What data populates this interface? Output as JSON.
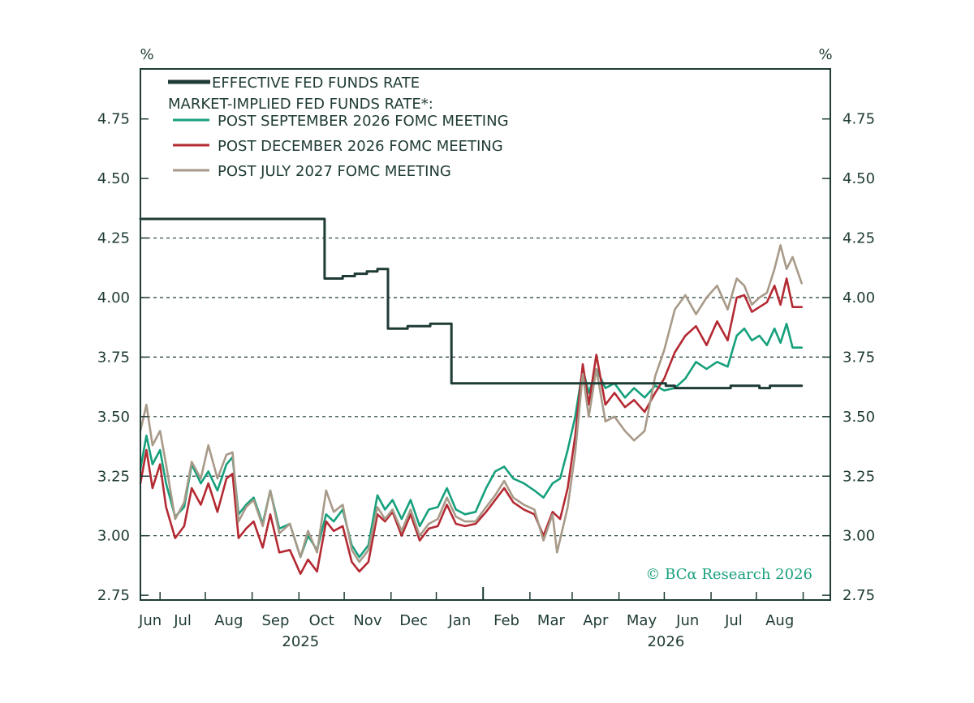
{
  "colors": {
    "frame": "#1f3b35",
    "grid": "#1f3b35",
    "effective": "#1f3b35",
    "sep2026": "#17a07c",
    "dec2026": "#b42a33",
    "jul2027": "#a89a89",
    "credit": "#17a07c"
  },
  "credit": "© BCα Research 2026",
  "chart_data": {
    "type": "line",
    "title": "",
    "xlabel": "",
    "ylabel": "%",
    "ylabel_right": "%",
    "ylim": [
      2.73,
      4.96
    ],
    "yticks": [
      2.75,
      3.0,
      3.25,
      3.5,
      3.75,
      4.0,
      4.25,
      4.5,
      4.75
    ],
    "ytick_labels": [
      "2.75",
      "3.00",
      "3.25",
      "3.50",
      "3.75",
      "4.00",
      "4.25",
      "4.50",
      "4.75"
    ],
    "dashed_gridlines": [
      3.0,
      3.25,
      3.5,
      3.75,
      4.0,
      4.25
    ],
    "xlim": [
      "2025-05-19",
      "2026-08-19"
    ],
    "month_ticks": [
      "2025-06-01",
      "2025-07-01",
      "2025-08-01",
      "2025-09-01",
      "2025-10-01",
      "2025-11-01",
      "2025-12-01",
      "2026-01-01",
      "2026-02-01",
      "2026-03-01",
      "2026-04-01",
      "2026-05-01",
      "2026-06-01",
      "2026-07-01",
      "2026-08-01"
    ],
    "month_labels": [
      "Jun",
      "Jul",
      "Aug",
      "Sep",
      "Oct",
      "Nov",
      "Dec",
      "Jan",
      "Feb",
      "Mar",
      "Apr",
      "May",
      "Jun",
      "Jul",
      "Aug"
    ],
    "year_labels": [
      {
        "date": "2025-09-01",
        "label": "2025"
      },
      {
        "date": "2026-05-01",
        "label": "2026"
      }
    ],
    "legend_header": "MARKET-IMPLIED FED FUNDS RATE*:",
    "legend_position": "top-left",
    "series": [
      {
        "name": "EFFECTIVE FED FUNDS RATE",
        "key": "effective",
        "step": true,
        "points": [
          [
            "2025-05-19",
            4.33
          ],
          [
            "2025-09-18",
            4.08
          ],
          [
            "2025-09-30",
            4.09
          ],
          [
            "2025-10-08",
            4.1
          ],
          [
            "2025-10-16",
            4.11
          ],
          [
            "2025-10-23",
            4.12
          ],
          [
            "2025-10-30",
            3.87
          ],
          [
            "2025-11-06",
            3.87
          ],
          [
            "2025-11-12",
            3.88
          ],
          [
            "2025-11-20",
            3.88
          ],
          [
            "2025-11-27",
            3.89
          ],
          [
            "2025-12-11",
            3.64
          ],
          [
            "2026-04-20",
            3.64
          ],
          [
            "2026-05-02",
            3.63
          ],
          [
            "2026-05-08",
            3.62
          ],
          [
            "2026-06-14",
            3.63
          ],
          [
            "2026-07-03",
            3.62
          ],
          [
            "2026-07-10",
            3.63
          ],
          [
            "2026-07-31",
            3.63
          ]
        ]
      },
      {
        "name": "POST SEPTEMBER 2026 FOMC MEETING",
        "key": "sep2026",
        "points": [
          [
            "2025-05-19",
            3.28
          ],
          [
            "2025-05-23",
            3.42
          ],
          [
            "2025-05-27",
            3.3
          ],
          [
            "2025-06-01",
            3.36
          ],
          [
            "2025-06-05",
            3.22
          ],
          [
            "2025-06-11",
            3.08
          ],
          [
            "2025-06-17",
            3.12
          ],
          [
            "2025-06-22",
            3.3
          ],
          [
            "2025-06-28",
            3.22
          ],
          [
            "2025-07-03",
            3.27
          ],
          [
            "2025-07-09",
            3.19
          ],
          [
            "2025-07-15",
            3.3
          ],
          [
            "2025-07-19",
            3.33
          ],
          [
            "2025-07-23",
            3.09
          ],
          [
            "2025-07-28",
            3.13
          ],
          [
            "2025-08-02",
            3.16
          ],
          [
            "2025-08-08",
            3.05
          ],
          [
            "2025-08-13",
            3.19
          ],
          [
            "2025-08-19",
            3.03
          ],
          [
            "2025-08-26",
            3.05
          ],
          [
            "2025-09-02",
            2.91
          ],
          [
            "2025-09-07",
            3.0
          ],
          [
            "2025-09-13",
            2.94
          ],
          [
            "2025-09-19",
            3.09
          ],
          [
            "2025-09-24",
            3.06
          ],
          [
            "2025-09-30",
            3.11
          ],
          [
            "2025-10-06",
            2.96
          ],
          [
            "2025-10-11",
            2.91
          ],
          [
            "2025-10-17",
            2.96
          ],
          [
            "2025-10-23",
            3.17
          ],
          [
            "2025-10-28",
            3.11
          ],
          [
            "2025-11-02",
            3.15
          ],
          [
            "2025-11-08",
            3.07
          ],
          [
            "2025-11-14",
            3.15
          ],
          [
            "2025-11-20",
            3.04
          ],
          [
            "2025-11-26",
            3.11
          ],
          [
            "2025-12-02",
            3.12
          ],
          [
            "2025-12-08",
            3.2
          ],
          [
            "2025-12-14",
            3.11
          ],
          [
            "2025-12-20",
            3.09
          ],
          [
            "2025-12-27",
            3.1
          ],
          [
            "2026-01-03",
            3.2
          ],
          [
            "2026-01-09",
            3.27
          ],
          [
            "2026-01-15",
            3.29
          ],
          [
            "2026-01-21",
            3.24
          ],
          [
            "2026-01-28",
            3.22
          ],
          [
            "2026-02-04",
            3.19
          ],
          [
            "2026-02-10",
            3.16
          ],
          [
            "2026-02-16",
            3.22
          ],
          [
            "2026-02-21",
            3.24
          ],
          [
            "2026-02-26",
            3.36
          ],
          [
            "2026-03-03",
            3.5
          ],
          [
            "2026-03-08",
            3.7
          ],
          [
            "2026-03-12",
            3.6
          ],
          [
            "2026-03-17",
            3.7
          ],
          [
            "2026-03-23",
            3.62
          ],
          [
            "2026-03-29",
            3.64
          ],
          [
            "2026-04-05",
            3.58
          ],
          [
            "2026-04-11",
            3.62
          ],
          [
            "2026-04-18",
            3.58
          ],
          [
            "2026-04-25",
            3.63
          ],
          [
            "2026-05-01",
            3.61
          ],
          [
            "2026-05-08",
            3.62
          ],
          [
            "2026-05-15",
            3.66
          ],
          [
            "2026-05-22",
            3.73
          ],
          [
            "2026-05-29",
            3.7
          ],
          [
            "2026-06-05",
            3.73
          ],
          [
            "2026-06-12",
            3.71
          ],
          [
            "2026-06-18",
            3.84
          ],
          [
            "2026-06-23",
            3.87
          ],
          [
            "2026-06-28",
            3.82
          ],
          [
            "2026-07-03",
            3.84
          ],
          [
            "2026-07-08",
            3.8
          ],
          [
            "2026-07-13",
            3.87
          ],
          [
            "2026-07-17",
            3.81
          ],
          [
            "2026-07-21",
            3.89
          ],
          [
            "2026-07-25",
            3.79
          ],
          [
            "2026-07-31",
            3.79
          ]
        ]
      },
      {
        "name": "POST DECEMBER 2026 FOMC MEETING",
        "key": "dec2026",
        "points": [
          [
            "2025-05-19",
            3.22
          ],
          [
            "2025-05-23",
            3.36
          ],
          [
            "2025-05-27",
            3.2
          ],
          [
            "2025-06-01",
            3.3
          ],
          [
            "2025-06-05",
            3.12
          ],
          [
            "2025-06-11",
            2.99
          ],
          [
            "2025-06-17",
            3.04
          ],
          [
            "2025-06-22",
            3.2
          ],
          [
            "2025-06-28",
            3.13
          ],
          [
            "2025-07-03",
            3.22
          ],
          [
            "2025-07-09",
            3.1
          ],
          [
            "2025-07-15",
            3.24
          ],
          [
            "2025-07-19",
            3.26
          ],
          [
            "2025-07-23",
            2.99
          ],
          [
            "2025-07-28",
            3.03
          ],
          [
            "2025-08-02",
            3.06
          ],
          [
            "2025-08-08",
            2.95
          ],
          [
            "2025-08-13",
            3.09
          ],
          [
            "2025-08-19",
            2.93
          ],
          [
            "2025-08-26",
            2.94
          ],
          [
            "2025-09-02",
            2.84
          ],
          [
            "2025-09-07",
            2.9
          ],
          [
            "2025-09-13",
            2.85
          ],
          [
            "2025-09-19",
            3.06
          ],
          [
            "2025-09-24",
            3.02
          ],
          [
            "2025-09-30",
            3.04
          ],
          [
            "2025-10-06",
            2.89
          ],
          [
            "2025-10-11",
            2.85
          ],
          [
            "2025-10-17",
            2.89
          ],
          [
            "2025-10-23",
            3.09
          ],
          [
            "2025-10-28",
            3.06
          ],
          [
            "2025-11-02",
            3.1
          ],
          [
            "2025-11-08",
            3.0
          ],
          [
            "2025-11-14",
            3.09
          ],
          [
            "2025-11-20",
            2.98
          ],
          [
            "2025-11-26",
            3.03
          ],
          [
            "2025-12-02",
            3.04
          ],
          [
            "2025-12-08",
            3.13
          ],
          [
            "2025-12-14",
            3.05
          ],
          [
            "2025-12-20",
            3.04
          ],
          [
            "2025-12-27",
            3.05
          ],
          [
            "2026-01-03",
            3.1
          ],
          [
            "2026-01-09",
            3.15
          ],
          [
            "2026-01-15",
            3.2
          ],
          [
            "2026-01-21",
            3.14
          ],
          [
            "2026-01-28",
            3.11
          ],
          [
            "2026-02-04",
            3.09
          ],
          [
            "2026-02-10",
            3.0
          ],
          [
            "2026-02-16",
            3.1
          ],
          [
            "2026-02-21",
            3.07
          ],
          [
            "2026-02-26",
            3.2
          ],
          [
            "2026-03-03",
            3.42
          ],
          [
            "2026-03-08",
            3.72
          ],
          [
            "2026-03-12",
            3.55
          ],
          [
            "2026-03-17",
            3.76
          ],
          [
            "2026-03-23",
            3.55
          ],
          [
            "2026-03-29",
            3.6
          ],
          [
            "2026-04-05",
            3.54
          ],
          [
            "2026-04-11",
            3.57
          ],
          [
            "2026-04-18",
            3.52
          ],
          [
            "2026-04-25",
            3.6
          ],
          [
            "2026-05-01",
            3.66
          ],
          [
            "2026-05-08",
            3.77
          ],
          [
            "2026-05-15",
            3.84
          ],
          [
            "2026-05-22",
            3.88
          ],
          [
            "2026-05-29",
            3.8
          ],
          [
            "2026-06-05",
            3.9
          ],
          [
            "2026-06-12",
            3.82
          ],
          [
            "2026-06-18",
            4.0
          ],
          [
            "2026-06-23",
            4.01
          ],
          [
            "2026-06-28",
            3.94
          ],
          [
            "2026-07-03",
            3.96
          ],
          [
            "2026-07-08",
            3.98
          ],
          [
            "2026-07-13",
            4.05
          ],
          [
            "2026-07-17",
            3.97
          ],
          [
            "2026-07-21",
            4.08
          ],
          [
            "2026-07-25",
            3.96
          ],
          [
            "2026-07-31",
            3.96
          ]
        ]
      },
      {
        "name": "POST JULY 2027 FOMC MEETING",
        "key": "jul2027",
        "points": [
          [
            "2025-05-19",
            3.44
          ],
          [
            "2025-05-23",
            3.55
          ],
          [
            "2025-05-27",
            3.38
          ],
          [
            "2025-06-01",
            3.44
          ],
          [
            "2025-06-05",
            3.3
          ],
          [
            "2025-06-11",
            3.07
          ],
          [
            "2025-06-17",
            3.14
          ],
          [
            "2025-06-22",
            3.31
          ],
          [
            "2025-06-28",
            3.24
          ],
          [
            "2025-07-03",
            3.38
          ],
          [
            "2025-07-09",
            3.24
          ],
          [
            "2025-07-15",
            3.34
          ],
          [
            "2025-07-19",
            3.35
          ],
          [
            "2025-07-23",
            3.06
          ],
          [
            "2025-07-28",
            3.12
          ],
          [
            "2025-08-02",
            3.15
          ],
          [
            "2025-08-08",
            3.04
          ],
          [
            "2025-08-13",
            3.19
          ],
          [
            "2025-08-19",
            3.01
          ],
          [
            "2025-08-26",
            3.05
          ],
          [
            "2025-09-02",
            2.91
          ],
          [
            "2025-09-07",
            3.02
          ],
          [
            "2025-09-13",
            2.93
          ],
          [
            "2025-09-19",
            3.19
          ],
          [
            "2025-09-24",
            3.1
          ],
          [
            "2025-09-30",
            3.13
          ],
          [
            "2025-10-06",
            2.94
          ],
          [
            "2025-10-11",
            2.89
          ],
          [
            "2025-10-17",
            2.94
          ],
          [
            "2025-10-23",
            3.12
          ],
          [
            "2025-10-28",
            3.07
          ],
          [
            "2025-11-02",
            3.11
          ],
          [
            "2025-11-08",
            3.02
          ],
          [
            "2025-11-14",
            3.11
          ],
          [
            "2025-11-20",
            3.0
          ],
          [
            "2025-11-26",
            3.05
          ],
          [
            "2025-12-02",
            3.07
          ],
          [
            "2025-12-08",
            3.16
          ],
          [
            "2025-12-14",
            3.08
          ],
          [
            "2025-12-20",
            3.06
          ],
          [
            "2025-12-27",
            3.06
          ],
          [
            "2026-01-03",
            3.12
          ],
          [
            "2026-01-09",
            3.17
          ],
          [
            "2026-01-15",
            3.23
          ],
          [
            "2026-01-21",
            3.16
          ],
          [
            "2026-01-28",
            3.13
          ],
          [
            "2026-02-04",
            3.11
          ],
          [
            "2026-02-10",
            2.98
          ],
          [
            "2026-02-16",
            3.09
          ],
          [
            "2026-02-19",
            2.93
          ],
          [
            "2026-02-26",
            3.12
          ],
          [
            "2026-03-03",
            3.35
          ],
          [
            "2026-03-08",
            3.68
          ],
          [
            "2026-03-12",
            3.5
          ],
          [
            "2026-03-17",
            3.7
          ],
          [
            "2026-03-23",
            3.48
          ],
          [
            "2026-03-29",
            3.5
          ],
          [
            "2026-04-05",
            3.44
          ],
          [
            "2026-04-11",
            3.4
          ],
          [
            "2026-04-18",
            3.44
          ],
          [
            "2026-04-25",
            3.67
          ],
          [
            "2026-05-01",
            3.78
          ],
          [
            "2026-05-08",
            3.95
          ],
          [
            "2026-05-15",
            4.01
          ],
          [
            "2026-05-22",
            3.93
          ],
          [
            "2026-05-29",
            4.0
          ],
          [
            "2026-06-05",
            4.05
          ],
          [
            "2026-06-12",
            3.95
          ],
          [
            "2026-06-18",
            4.08
          ],
          [
            "2026-06-23",
            4.05
          ],
          [
            "2026-06-28",
            3.97
          ],
          [
            "2026-07-03",
            4.0
          ],
          [
            "2026-07-08",
            4.02
          ],
          [
            "2026-07-13",
            4.12
          ],
          [
            "2026-07-17",
            4.22
          ],
          [
            "2026-07-21",
            4.12
          ],
          [
            "2026-07-25",
            4.17
          ],
          [
            "2026-07-31",
            4.06
          ]
        ]
      }
    ]
  }
}
